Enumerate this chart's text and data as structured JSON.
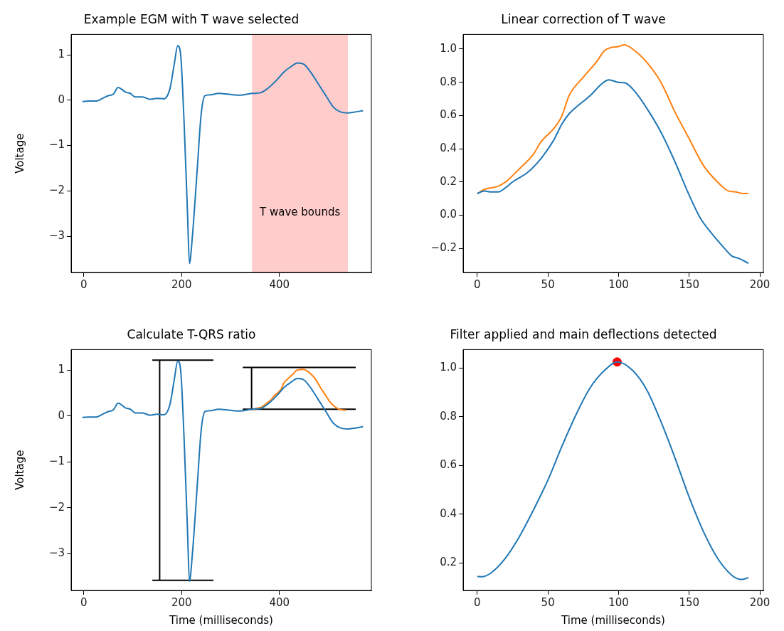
{
  "chart_data": [
    {
      "type": "line",
      "title": "Example EGM with T wave selected",
      "ylabel": "Voltage",
      "xlim": [
        -26,
        588
      ],
      "xticks": [
        0,
        200,
        400
      ],
      "ylim": [
        -3.8,
        1.45
      ],
      "yticks": [
        {
          "value": 1,
          "label": "1"
        },
        {
          "value": 0,
          "label": "0"
        },
        {
          "value": -1,
          "label": "−1"
        },
        {
          "value": -2,
          "label": "−2"
        },
        {
          "value": -3,
          "label": "−3"
        }
      ],
      "bands": [
        {
          "axis": "x",
          "from": 344,
          "to": 540,
          "label": "T wave bounds",
          "color": "#ffcccc"
        }
      ],
      "series": [
        {
          "color": "#1f77b4",
          "x": [
            -3,
            10,
            25,
            40,
            50,
            60,
            70,
            85,
            95,
            105,
            120,
            135,
            150,
            164,
            176,
            185,
            192,
            198,
            205,
            212,
            216,
            222,
            232,
            240,
            248,
            260,
            275,
            290,
            305,
            320,
            344,
            360,
            375,
            395,
            410,
            425,
            437,
            450,
            465,
            480,
            495,
            510,
            525,
            540,
            555,
            571
          ],
          "values": [
            -0.03,
            -0.02,
            -0.02,
            0.05,
            0.1,
            0.13,
            0.28,
            0.18,
            0.15,
            0.07,
            0.07,
            0.02,
            0.04,
            0.03,
            0.25,
            0.8,
            1.2,
            1.0,
            -0.5,
            -2.5,
            -3.6,
            -3.0,
            -1.5,
            -0.3,
            0.1,
            0.12,
            0.15,
            0.14,
            0.12,
            0.11,
            0.15,
            0.16,
            0.25,
            0.45,
            0.63,
            0.75,
            0.82,
            0.79,
            0.6,
            0.35,
            0.1,
            -0.15,
            -0.26,
            -0.28,
            -0.26,
            -0.23
          ]
        }
      ]
    },
    {
      "type": "line",
      "title": "Linear correction of T wave",
      "xlim": [
        -10,
        202.5
      ],
      "xticks": [
        0,
        50,
        100,
        150,
        200
      ],
      "ylim": [
        -0.345,
        1.088
      ],
      "yticks": [
        {
          "value": -0.2,
          "label": "−0.2"
        },
        {
          "value": 0,
          "label": "0.0"
        },
        {
          "value": 0.2,
          "label": "0.2"
        },
        {
          "value": 0.4,
          "label": "0.4"
        },
        {
          "value": 0.6,
          "label": "0.6"
        },
        {
          "value": 0.8,
          "label": "0.8"
        },
        {
          "value": 1,
          "label": "1.0"
        }
      ],
      "series": [
        {
          "color": "#1f77b4",
          "x": [
            0,
            5,
            10,
            15,
            20,
            25,
            36,
            45,
            54,
            60,
            65,
            70,
            80,
            88,
            93,
            100,
            105,
            112,
            121,
            130,
            140,
            150,
            158,
            165,
            175,
            180,
            185,
            192
          ],
          "values": [
            0.13,
            0.145,
            0.14,
            0.14,
            0.165,
            0.2,
            0.26,
            0.34,
            0.45,
            0.55,
            0.61,
            0.65,
            0.72,
            0.79,
            0.815,
            0.8,
            0.795,
            0.74,
            0.63,
            0.5,
            0.32,
            0.12,
            -0.02,
            -0.1,
            -0.2,
            -0.245,
            -0.26,
            -0.29
          ]
        },
        {
          "color": "#ff7f0e",
          "x": [
            0,
            5,
            15,
            20,
            30,
            40,
            45,
            55,
            60,
            65,
            75,
            85,
            90,
            95,
            100,
            104,
            110,
            120,
            130,
            140,
            150,
            160,
            170,
            178,
            183,
            188,
            192
          ],
          "values": [
            0.13,
            0.155,
            0.175,
            0.2,
            0.28,
            0.37,
            0.44,
            0.53,
            0.6,
            0.72,
            0.83,
            0.93,
            0.99,
            1.01,
            1.015,
            1.025,
            1.0,
            0.92,
            0.8,
            0.62,
            0.46,
            0.3,
            0.2,
            0.145,
            0.14,
            0.13,
            0.13
          ]
        }
      ]
    },
    {
      "type": "line",
      "title": "Calculate T-QRS ratio",
      "xlabel": "Time (milliseconds)",
      "ylabel": "Voltage",
      "xlim": [
        -26,
        588
      ],
      "xticks": [
        0,
        200,
        400
      ],
      "ylim": [
        -3.8,
        1.45
      ],
      "yticks": [
        {
          "value": 1,
          "label": "1"
        },
        {
          "value": 0,
          "label": "0"
        },
        {
          "value": -1,
          "label": "−1"
        },
        {
          "value": -2,
          "label": "−2"
        },
        {
          "value": -3,
          "label": "−3"
        }
      ],
      "series": [
        {
          "color": "#1f77b4",
          "x": [
            -3,
            10,
            25,
            40,
            50,
            60,
            70,
            85,
            95,
            105,
            120,
            135,
            150,
            164,
            176,
            185,
            192,
            198,
            205,
            212,
            216,
            222,
            232,
            240,
            248,
            260,
            275,
            290,
            305,
            320,
            344,
            360,
            375,
            395,
            410,
            425,
            437,
            450,
            465,
            480,
            495,
            510,
            525,
            540,
            555,
            571
          ],
          "values": [
            -0.03,
            -0.02,
            -0.02,
            0.05,
            0.1,
            0.13,
            0.28,
            0.18,
            0.15,
            0.07,
            0.07,
            0.02,
            0.04,
            0.03,
            0.25,
            0.8,
            1.2,
            1.0,
            -0.5,
            -2.5,
            -3.6,
            -3.0,
            -1.5,
            -0.3,
            0.1,
            0.12,
            0.15,
            0.14,
            0.12,
            0.11,
            0.15,
            0.16,
            0.25,
            0.45,
            0.63,
            0.75,
            0.82,
            0.79,
            0.6,
            0.35,
            0.1,
            -0.15,
            -0.26,
            -0.28,
            -0.26,
            -0.23
          ]
        },
        {
          "color": "#ff7f0e",
          "x": [
            344,
            349,
            359,
            364,
            374,
            384,
            389,
            399,
            404,
            409,
            419,
            429,
            434,
            439,
            444,
            448,
            454,
            464,
            474,
            484,
            494,
            504,
            514,
            522,
            527,
            532,
            536
          ],
          "values": [
            0.13,
            0.16,
            0.18,
            0.2,
            0.28,
            0.37,
            0.44,
            0.53,
            0.6,
            0.72,
            0.83,
            0.93,
            0.99,
            1.01,
            1.02,
            1.02,
            1.0,
            0.92,
            0.8,
            0.62,
            0.46,
            0.3,
            0.2,
            0.15,
            0.14,
            0.13,
            0.13
          ]
        },
        {
          "color": "#000000",
          "x": [
            140,
            265
          ],
          "values": [
            1.22,
            1.22
          ]
        },
        {
          "color": "#000000",
          "x": [
            140,
            265
          ],
          "values": [
            -3.58,
            -3.58
          ]
        },
        {
          "color": "#000000",
          "x": [
            155,
            155
          ],
          "values": [
            -3.58,
            1.22
          ]
        },
        {
          "color": "#000000",
          "x": [
            325,
            556
          ],
          "values": [
            1.06,
            1.06
          ]
        },
        {
          "color": "#000000",
          "x": [
            325,
            556
          ],
          "values": [
            0.15,
            0.15
          ]
        },
        {
          "color": "#000000",
          "x": [
            343,
            343
          ],
          "values": [
            0.15,
            1.06
          ]
        }
      ]
    },
    {
      "type": "line",
      "title": "Filter applied and main deflections detected",
      "xlabel": "Time (milliseconds)",
      "xlim": [
        -10,
        202.5
      ],
      "xticks": [
        0,
        50,
        100,
        150,
        200
      ],
      "ylim": [
        0.087,
        1.076
      ],
      "yticks": [
        {
          "value": 0.2,
          "label": "0.2"
        },
        {
          "value": 0.4,
          "label": "0.4"
        },
        {
          "value": 0.6,
          "label": "0.6"
        },
        {
          "value": 0.8,
          "label": "0.8"
        },
        {
          "value": 1,
          "label": "1.0"
        }
      ],
      "series": [
        {
          "color": "#1f77b4",
          "x": [
            0,
            3,
            10,
            20,
            30,
            40,
            50,
            60,
            70,
            80,
            90,
            99,
            110,
            120,
            130,
            140,
            150,
            160,
            170,
            180,
            187,
            192
          ],
          "values": [
            0.145,
            0.143,
            0.16,
            0.22,
            0.31,
            0.42,
            0.54,
            0.68,
            0.81,
            0.92,
            0.99,
            1.025,
            0.99,
            0.91,
            0.78,
            0.63,
            0.47,
            0.33,
            0.22,
            0.15,
            0.132,
            0.14
          ]
        },
        {
          "type": "scatter",
          "marker": "circle",
          "color": "#ff0000",
          "x": [
            99
          ],
          "values": [
            1.025
          ]
        }
      ]
    }
  ]
}
